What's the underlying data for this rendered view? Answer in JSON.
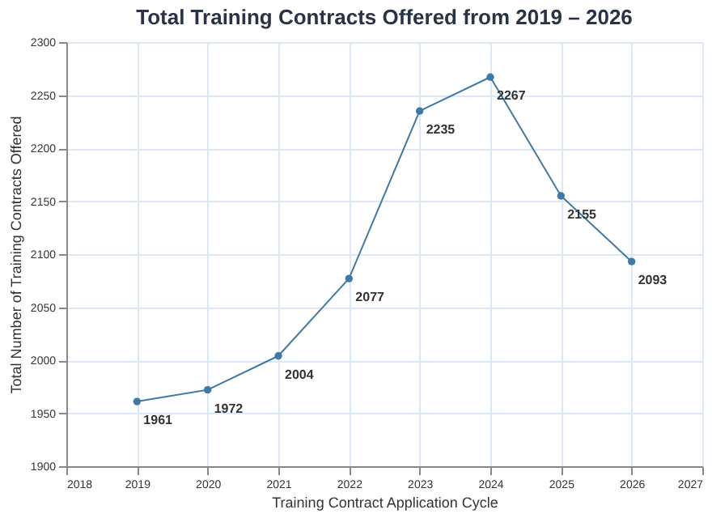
{
  "chart_data": {
    "type": "line",
    "title": "Total Training Contracts Offered from 2019 – 2026",
    "xlabel": "Training Contract Application Cycle",
    "ylabel": "Total Number of Training Contracts Offered",
    "x": [
      2019,
      2020,
      2021,
      2022,
      2023,
      2024,
      2025,
      2026
    ],
    "series": [
      {
        "color": "#3f7aa6",
        "values": [
          1961,
          1972,
          2004,
          2077,
          2235,
          2267,
          2155,
          2093
        ]
      }
    ],
    "xlim": [
      2018,
      2027
    ],
    "xticks": [
      2018,
      2019,
      2020,
      2021,
      2022,
      2023,
      2024,
      2025,
      2026,
      2027
    ],
    "ylim": [
      1900,
      2300
    ],
    "yticks": [
      1900,
      1950,
      2000,
      2050,
      2100,
      2150,
      2200,
      2250,
      2300
    ],
    "grid": true,
    "marker": "circle",
    "line_style": "solid",
    "data_labels": true
  }
}
